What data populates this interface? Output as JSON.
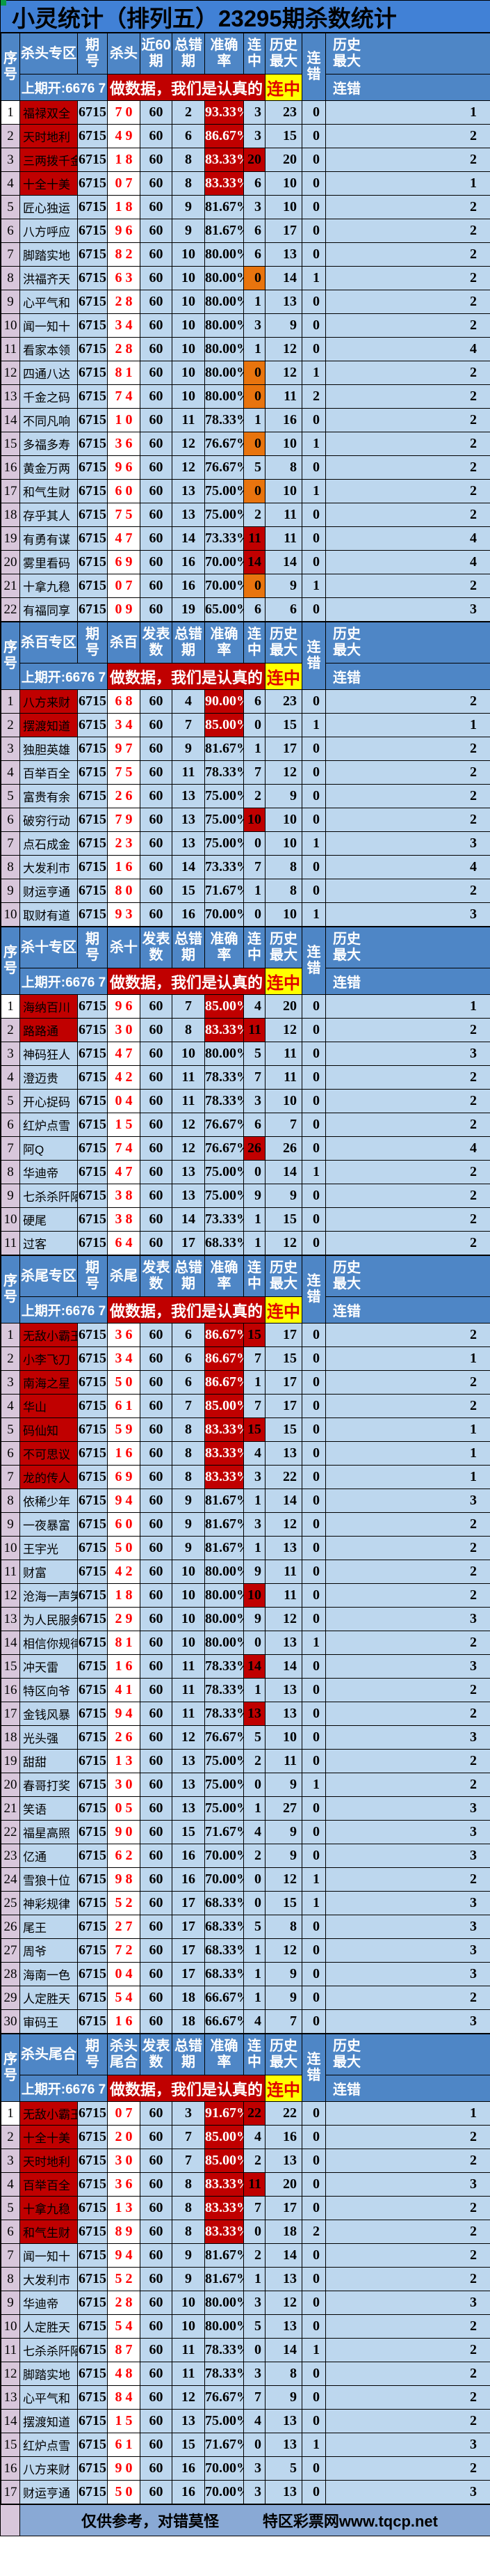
{
  "title": "小灵统计（排列五）23295期杀数统计",
  "prev_draw": "上期开:6676 7",
  "slogan": "做数据，我们是认真的",
  "common": {
    "seq": "序\n号",
    "issue": "期\n号",
    "err": "总错\n期",
    "acc": "准确\n率",
    "streak": "连\n中",
    "histmax": "历史\n最大",
    "miss": "连\n错",
    "sub_streak": "连中",
    "sub_miss": "连错"
  },
  "colors": {
    "title_blue": "#4181d6",
    "header_blue": "#4e86c6",
    "cell_blue": "#bdd7ee",
    "seq_pink": "#d8c7db",
    "highlight_red": "#c00000",
    "highlight_orange": "#e8740e",
    "sub_streak_yellow": "#ffff00",
    "kill_digit_red": "#ff0000",
    "footer_blue": "#89a9d5"
  },
  "footer": {
    "disclaimer": "仅供参考，对错莫怪",
    "site": "特区彩票网www.tqcp.net"
  },
  "sections": [
    {
      "id": "kill-head",
      "zone": "杀头专区",
      "kill": "杀头",
      "count": "近60\n期",
      "rows": [
        [
          1,
          "福禄双全",
          "6715",
          "7 0",
          60,
          2,
          "93.33%",
          3,
          23,
          0,
          1,
          "nr ar sw"
        ],
        [
          2,
          "天时地利",
          "6715",
          "4 9",
          60,
          6,
          "86.67%",
          3,
          15,
          0,
          2,
          "nr ar"
        ],
        [
          3,
          "三两拨千金",
          "6715",
          "1 8",
          60,
          8,
          "83.33%",
          20,
          20,
          0,
          2,
          "nr ar sr"
        ],
        [
          4,
          "十全十美",
          "6715",
          "0 7",
          60,
          8,
          "83.33%",
          6,
          10,
          0,
          1,
          "nr ar"
        ],
        [
          5,
          "匠心独运",
          "6715",
          "1 8",
          60,
          9,
          "81.67%",
          3,
          10,
          0,
          2,
          ""
        ],
        [
          6,
          "八方呼应",
          "6715",
          "9 6",
          60,
          9,
          "81.67%",
          6,
          17,
          0,
          2,
          ""
        ],
        [
          7,
          "脚踏实地",
          "6715",
          "8 2",
          60,
          10,
          "80.00%",
          6,
          13,
          0,
          2,
          ""
        ],
        [
          8,
          "洪福齐天",
          "6715",
          "6 3",
          60,
          10,
          "80.00%",
          0,
          14,
          1,
          2,
          "so"
        ],
        [
          9,
          "心平气和",
          "6715",
          "2 8",
          60,
          10,
          "80.00%",
          1,
          13,
          0,
          2,
          ""
        ],
        [
          10,
          "闻一知十",
          "6715",
          "3 4",
          60,
          10,
          "80.00%",
          3,
          9,
          0,
          2,
          ""
        ],
        [
          11,
          "看家本领",
          "6715",
          "2 8",
          60,
          10,
          "80.00%",
          1,
          12,
          0,
          4,
          ""
        ],
        [
          12,
          "四通八达",
          "6715",
          "8 1",
          60,
          10,
          "80.00%",
          0,
          12,
          1,
          2,
          "so"
        ],
        [
          13,
          "千金之码",
          "6715",
          "7 4",
          60,
          10,
          "80.00%",
          0,
          11,
          2,
          2,
          "so"
        ],
        [
          14,
          "不同凡响",
          "6715",
          "1 0",
          60,
          11,
          "78.33%",
          1,
          16,
          0,
          2,
          ""
        ],
        [
          15,
          "多福多寿",
          "6715",
          "3 6",
          60,
          12,
          "76.67%",
          0,
          10,
          1,
          2,
          "so"
        ],
        [
          16,
          "黄金万两",
          "6715",
          "9 6",
          60,
          12,
          "76.67%",
          5,
          8,
          0,
          2,
          ""
        ],
        [
          17,
          "和气生财",
          "6715",
          "6 0",
          60,
          13,
          "75.00%",
          0,
          10,
          1,
          2,
          "so"
        ],
        [
          18,
          "存乎其人",
          "6715",
          "7 5",
          60,
          13,
          "75.00%",
          2,
          11,
          0,
          2,
          ""
        ],
        [
          19,
          "有勇有谋",
          "6715",
          "4 7",
          60,
          14,
          "73.33%",
          11,
          11,
          0,
          4,
          "sr"
        ],
        [
          20,
          "雾里看码",
          "6715",
          "6 9",
          60,
          16,
          "70.00%",
          14,
          14,
          0,
          4,
          "sr"
        ],
        [
          21,
          "十拿九稳",
          "6715",
          "0 7",
          60,
          16,
          "70.00%",
          0,
          9,
          1,
          2,
          "so"
        ],
        [
          22,
          "有福同享",
          "6715",
          "0 9",
          60,
          19,
          "65.00%",
          6,
          6,
          0,
          3,
          ""
        ]
      ]
    },
    {
      "id": "kill-hundred",
      "zone": "杀百专区",
      "kill": "杀百",
      "count": "发表\n数",
      "rows": [
        [
          1,
          "八方来财",
          "6715",
          "6 8",
          60,
          4,
          "90.00%",
          6,
          23,
          0,
          2,
          "nr ar"
        ],
        [
          2,
          "摆渡知道",
          "6715",
          "3 4",
          60,
          7,
          "85.00%",
          0,
          15,
          1,
          1,
          "nr ar"
        ],
        [
          3,
          "独胆英雄",
          "6715",
          "9 7",
          60,
          9,
          "81.67%",
          1,
          17,
          0,
          2,
          ""
        ],
        [
          4,
          "百举百全",
          "6715",
          "7 5",
          60,
          11,
          "78.33%",
          7,
          12,
          0,
          2,
          ""
        ],
        [
          5,
          "富贵有余",
          "6715",
          "2 6",
          60,
          13,
          "75.00%",
          2,
          9,
          0,
          2,
          ""
        ],
        [
          6,
          "破穷行动",
          "6715",
          "7 9",
          60,
          13,
          "75.00%",
          10,
          10,
          0,
          2,
          "sr"
        ],
        [
          7,
          "点石成金",
          "6715",
          "2 3",
          60,
          13,
          "75.00%",
          0,
          10,
          1,
          3,
          ""
        ],
        [
          8,
          "大发利市",
          "6715",
          "1 6",
          60,
          14,
          "73.33%",
          7,
          8,
          0,
          4,
          ""
        ],
        [
          9,
          "财运亨通",
          "6715",
          "8 0",
          60,
          15,
          "71.67%",
          1,
          8,
          0,
          2,
          ""
        ],
        [
          10,
          "取财有道",
          "6715",
          "9 3",
          60,
          16,
          "70.00%",
          0,
          10,
          1,
          3,
          ""
        ]
      ]
    },
    {
      "id": "kill-ten",
      "zone": "杀十专区",
      "kill": "杀十",
      "count": "发表\n数",
      "rows": [
        [
          1,
          "海纳百川",
          "6715",
          "9 6",
          60,
          7,
          "85.00%",
          4,
          20,
          0,
          1,
          "nr ar sw"
        ],
        [
          2,
          "路路通",
          "6715",
          "3 0",
          60,
          8,
          "83.33%",
          11,
          12,
          0,
          2,
          "nr ar sr"
        ],
        [
          3,
          "神码狂人",
          "6715",
          "4 7",
          60,
          10,
          "80.00%",
          5,
          11,
          0,
          3,
          ""
        ],
        [
          4,
          "澄迈贵",
          "6715",
          "4 2",
          60,
          11,
          "78.33%",
          7,
          11,
          0,
          2,
          ""
        ],
        [
          5,
          "开心捉码",
          "6715",
          "0 4",
          60,
          11,
          "78.33%",
          3,
          10,
          0,
          2,
          ""
        ],
        [
          6,
          "红炉点雪",
          "6715",
          "1 5",
          60,
          12,
          "76.67%",
          6,
          7,
          0,
          2,
          ""
        ],
        [
          7,
          "阿Q",
          "6715",
          "7 4",
          60,
          12,
          "76.67%",
          26,
          26,
          0,
          4,
          "sr"
        ],
        [
          8,
          "华迪帝",
          "6715",
          "4 7",
          60,
          13,
          "75.00%",
          0,
          14,
          1,
          2,
          ""
        ],
        [
          9,
          "七杀杀阡陌",
          "6715",
          "3 8",
          60,
          13,
          "75.00%",
          9,
          9,
          0,
          2,
          ""
        ],
        [
          10,
          "硬尾",
          "6715",
          "3 8",
          60,
          14,
          "73.33%",
          1,
          15,
          0,
          2,
          ""
        ],
        [
          11,
          "过客",
          "6715",
          "6 4",
          60,
          17,
          "68.33%",
          1,
          12,
          0,
          2,
          ""
        ]
      ]
    },
    {
      "id": "kill-tail",
      "zone": "杀尾专区",
      "kill": "杀尾",
      "count": "发表\n数",
      "rows": [
        [
          1,
          "无敌小霸王",
          "6715",
          "3 6",
          60,
          6,
          "86.67%",
          15,
          17,
          0,
          2,
          "nr ar sr"
        ],
        [
          2,
          "小李飞刀",
          "6715",
          "3 4",
          60,
          6,
          "86.67%",
          7,
          15,
          0,
          1,
          "nr ar"
        ],
        [
          3,
          "南海之星",
          "6715",
          "5 0",
          60,
          6,
          "86.67%",
          1,
          17,
          0,
          2,
          "nr ar"
        ],
        [
          4,
          "华山",
          "6715",
          "6 1",
          60,
          7,
          "85.00%",
          7,
          17,
          0,
          2,
          "nr ar"
        ],
        [
          5,
          "码仙知",
          "6715",
          "5 9",
          60,
          8,
          "83.33%",
          15,
          15,
          0,
          1,
          "nr ar sr"
        ],
        [
          6,
          "不可思议",
          "6715",
          "1 6",
          60,
          8,
          "83.33%",
          4,
          13,
          0,
          1,
          "nr ar"
        ],
        [
          7,
          "龙的传人",
          "6715",
          "6 9",
          60,
          8,
          "83.33%",
          3,
          22,
          0,
          1,
          "nr ar"
        ],
        [
          8,
          "依稀少年",
          "6715",
          "9 4",
          60,
          9,
          "81.67%",
          1,
          14,
          0,
          3,
          ""
        ],
        [
          9,
          "一夜暴富",
          "6715",
          "6 0",
          60,
          9,
          "81.67%",
          3,
          12,
          0,
          2,
          ""
        ],
        [
          10,
          "王宇光",
          "6715",
          "5 0",
          60,
          9,
          "81.67%",
          1,
          13,
          0,
          2,
          ""
        ],
        [
          11,
          "财富",
          "6715",
          "4 2",
          60,
          10,
          "80.00%",
          9,
          11,
          0,
          2,
          ""
        ],
        [
          12,
          "沧海一声笑",
          "6715",
          "1 8",
          60,
          10,
          "80.00%",
          10,
          11,
          0,
          2,
          "sr"
        ],
        [
          13,
          "为人民服务",
          "6715",
          "2 9",
          60,
          10,
          "80.00%",
          9,
          12,
          0,
          3,
          ""
        ],
        [
          14,
          "相信你规律",
          "6715",
          "8 1",
          60,
          10,
          "80.00%",
          0,
          13,
          1,
          2,
          ""
        ],
        [
          15,
          "冲天雷",
          "6715",
          "1 6",
          60,
          11,
          "78.33%",
          14,
          14,
          0,
          3,
          "sr"
        ],
        [
          16,
          "特区向爷",
          "6715",
          "4 1",
          60,
          11,
          "78.33%",
          1,
          13,
          0,
          2,
          ""
        ],
        [
          17,
          "金钱风暴",
          "6715",
          "9 4",
          60,
          11,
          "78.33%",
          13,
          13,
          0,
          2,
          "sr"
        ],
        [
          18,
          "光头强",
          "6715",
          "2 6",
          60,
          12,
          "76.67%",
          5,
          10,
          0,
          3,
          ""
        ],
        [
          19,
          "甜甜",
          "6715",
          "1 3",
          60,
          13,
          "75.00%",
          2,
          11,
          0,
          2,
          ""
        ],
        [
          20,
          "春哥打奖",
          "6715",
          "3 0",
          60,
          13,
          "75.00%",
          0,
          9,
          1,
          2,
          ""
        ],
        [
          21,
          "笑语",
          "6715",
          "0 5",
          60,
          13,
          "75.00%",
          1,
          27,
          0,
          3,
          ""
        ],
        [
          22,
          "福星高照",
          "6715",
          "9 0",
          60,
          15,
          "71.67%",
          4,
          9,
          0,
          3,
          ""
        ],
        [
          23,
          "亿通",
          "6715",
          "6 2",
          60,
          16,
          "70.00%",
          2,
          9,
          0,
          3,
          ""
        ],
        [
          24,
          "雪狼十位",
          "6715",
          "9 8",
          60,
          16,
          "70.00%",
          0,
          12,
          1,
          2,
          ""
        ],
        [
          25,
          "神彩规律",
          "6715",
          "5 2",
          60,
          17,
          "68.33%",
          0,
          15,
          1,
          3,
          ""
        ],
        [
          26,
          "尾王",
          "6715",
          "2 7",
          60,
          17,
          "68.33%",
          5,
          8,
          0,
          3,
          ""
        ],
        [
          27,
          "周爷",
          "6715",
          "7 2",
          60,
          17,
          "68.33%",
          1,
          12,
          0,
          3,
          ""
        ],
        [
          28,
          "海南一色",
          "6715",
          "0 4",
          60,
          17,
          "68.33%",
          1,
          9,
          0,
          3,
          ""
        ],
        [
          29,
          "人定胜天",
          "6715",
          "5 4",
          60,
          18,
          "66.67%",
          1,
          9,
          0,
          2,
          ""
        ],
        [
          30,
          "审码王",
          "6715",
          "1 6",
          60,
          18,
          "66.67%",
          4,
          7,
          0,
          3,
          ""
        ]
      ]
    },
    {
      "id": "kill-head-tail-sum",
      "zone": "杀头尾合",
      "kill": "杀头\n尾合",
      "count": "发表\n数",
      "rows": [
        [
          1,
          "无敌小霸王",
          "6715",
          "0 7",
          60,
          3,
          "91.67%",
          22,
          22,
          0,
          1,
          "nr ar sr sw"
        ],
        [
          2,
          "十全十美",
          "6715",
          "2 0",
          60,
          7,
          "85.00%",
          4,
          16,
          0,
          2,
          "nr ar"
        ],
        [
          3,
          "天时地利",
          "6715",
          "3 0",
          60,
          7,
          "85.00%",
          2,
          13,
          0,
          2,
          "nr ar"
        ],
        [
          4,
          "百举百全",
          "6715",
          "3 6",
          60,
          8,
          "83.33%",
          11,
          20,
          0,
          3,
          "nr ar sr"
        ],
        [
          5,
          "十拿九稳",
          "6715",
          "1 3",
          60,
          8,
          "83.33%",
          7,
          17,
          0,
          2,
          "nr ar"
        ],
        [
          6,
          "和气生财",
          "6715",
          "8 9",
          60,
          8,
          "83.33%",
          0,
          18,
          2,
          2,
          "nr ar"
        ],
        [
          7,
          "闻一知十",
          "6715",
          "9 4",
          60,
          9,
          "81.67%",
          2,
          14,
          0,
          2,
          ""
        ],
        [
          8,
          "大发利市",
          "6715",
          "5 2",
          60,
          9,
          "81.67%",
          1,
          13,
          0,
          2,
          ""
        ],
        [
          9,
          "华迪帝",
          "6715",
          "2 8",
          60,
          10,
          "80.00%",
          3,
          12,
          0,
          3,
          ""
        ],
        [
          10,
          "人定胜天",
          "6715",
          "5 4",
          60,
          10,
          "80.00%",
          5,
          13,
          0,
          2,
          ""
        ],
        [
          11,
          "七杀杀阡陌",
          "6715",
          "8 7",
          60,
          11,
          "78.33%",
          0,
          14,
          1,
          2,
          ""
        ],
        [
          12,
          "脚踏实地",
          "6715",
          "4 8",
          60,
          11,
          "78.33%",
          3,
          8,
          0,
          2,
          ""
        ],
        [
          13,
          "心平气和",
          "6715",
          "8 4",
          60,
          12,
          "76.67%",
          7,
          9,
          0,
          2,
          ""
        ],
        [
          14,
          "摆渡知道",
          "6715",
          "1 5",
          60,
          13,
          "75.00%",
          4,
          13,
          0,
          2,
          ""
        ],
        [
          15,
          "红炉点雪",
          "6715",
          "6 1",
          60,
          15,
          "71.67%",
          0,
          13,
          1,
          3,
          ""
        ],
        [
          16,
          "八方来财",
          "6715",
          "9 0",
          60,
          16,
          "70.00%",
          3,
          5,
          0,
          2,
          ""
        ],
        [
          17,
          "财运亨通",
          "6715",
          "5 0",
          60,
          16,
          "70.00%",
          3,
          13,
          0,
          3,
          ""
        ]
      ]
    }
  ]
}
